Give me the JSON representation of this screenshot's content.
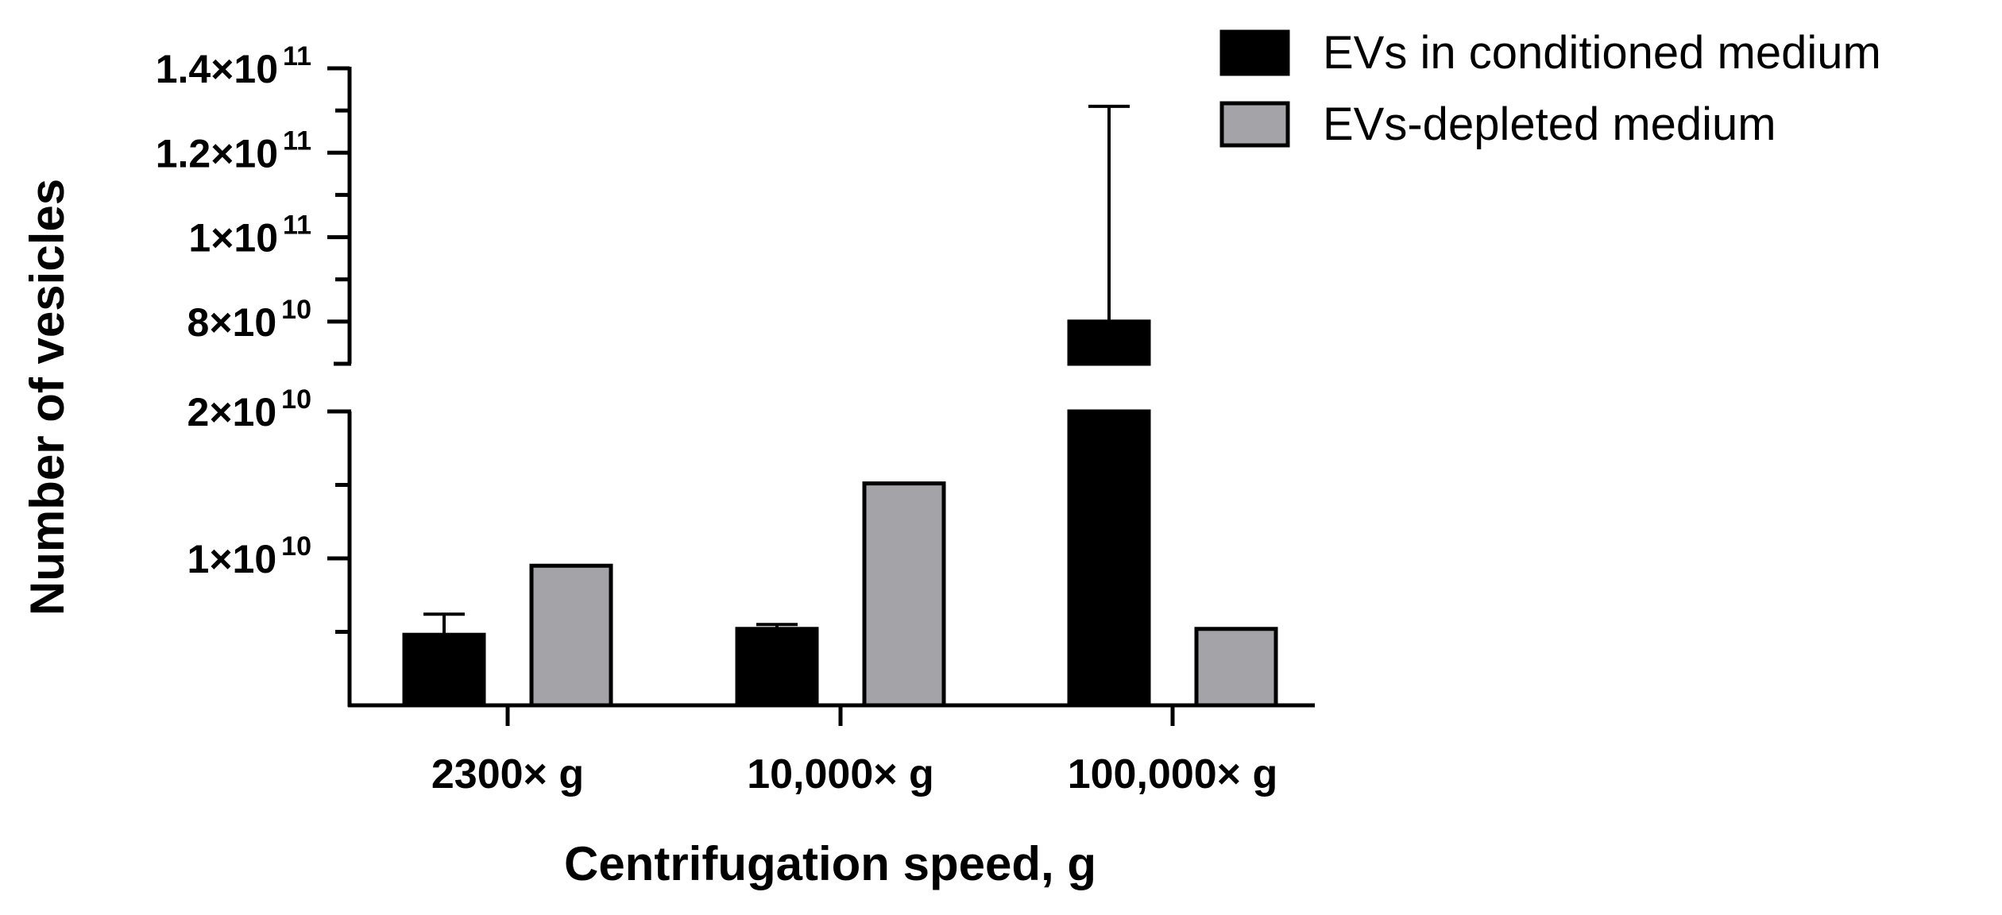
{
  "chart_data": {
    "type": "bar",
    "categories": [
      "2300× g",
      "10,000× g",
      "100,000× g"
    ],
    "series": [
      {
        "name": "EVs in conditioned medium",
        "color": "#000000",
        "values": [
          4800000000,
          5200000000,
          80000000000
        ],
        "error_upper": [
          6200000000,
          5500000000,
          131000000000
        ]
      },
      {
        "name": "EVs-depleted medium",
        "color": "#a4a3a8",
        "values": [
          9500000000,
          15100000000,
          5200000000
        ],
        "error_upper": [
          null,
          null,
          null
        ]
      }
    ],
    "xlabel": "Centrifugation speed, g",
    "ylabel": "Number of vesicles",
    "y_axis_segments": [
      {
        "range": [
          0,
          20000000000
        ],
        "ticks": [
          {
            "value": 10000000000,
            "mantissa": "1×10",
            "exp": "10"
          },
          {
            "value": 20000000000,
            "mantissa": "2×10",
            "exp": "10"
          }
        ]
      },
      {
        "range": [
          70000000000,
          140000000000
        ],
        "ticks": [
          {
            "value": 80000000000,
            "mantissa": "8×10",
            "exp": "10"
          },
          {
            "value": 100000000000,
            "mantissa": "1×10",
            "exp": "11"
          },
          {
            "value": 120000000000,
            "mantissa": "1.2×10",
            "exp": "11"
          },
          {
            "value": 140000000000,
            "mantissa": "1.4×10",
            "exp": "11"
          }
        ]
      }
    ],
    "legend_position": "top-right",
    "broken_axis": true
  }
}
